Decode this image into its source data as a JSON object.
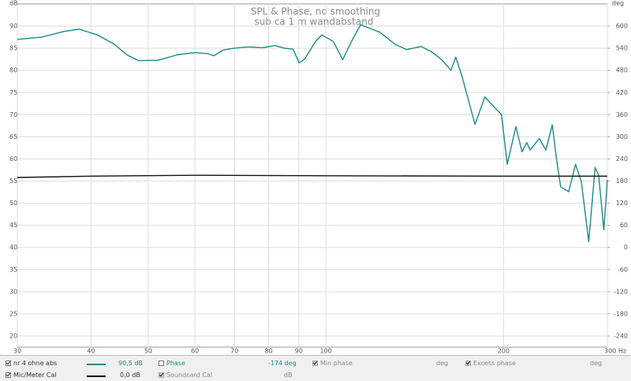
{
  "chart_data": {
    "type": "line",
    "title": "SPL & Phase, no smoothing",
    "subtitle": "sub ca 1 m wandabstand",
    "y_label": "dB",
    "y2_label": "deg",
    "log_x": true,
    "grid": true,
    "xlim": [
      30,
      300
    ],
    "xticks": [
      30,
      40,
      50,
      60,
      70,
      80,
      90,
      100,
      200,
      {
        "value": 300,
        "label": "300 Hz"
      }
    ],
    "ylim": [
      17.5,
      95
    ],
    "yticks": [
      20,
      25,
      30,
      35,
      40,
      45,
      50,
      55,
      60,
      65,
      70,
      75,
      80,
      85,
      90
    ],
    "y2lim": [
      -270,
      660
    ],
    "y2ticks": [
      -240,
      -180,
      -120,
      -60,
      0,
      60,
      120,
      180,
      240,
      300,
      360,
      420,
      480,
      540,
      600
    ],
    "series": [
      {
        "name": "nr 4 ohne abs",
        "color": "#1a8a8a",
        "x": [
          30,
          33,
          36,
          38.2,
          41,
          43.8,
          46,
          48.1,
          52,
          56,
          60,
          63,
          64.6,
          67,
          70,
          74,
          78,
          82,
          85,
          88,
          90.1,
          92,
          96,
          98.5,
          103,
          106.8,
          110,
          114.5,
          123.5,
          131,
          137,
          145,
          151,
          157,
          163,
          166,
          170,
          179,
          186,
          193,
          198.5,
          203,
          210,
          215,
          219,
          222,
          230,
          236,
          242,
          246,
          250,
          258,
          265,
          271,
          279,
          286,
          290,
          296,
          300
        ],
        "values": [
          87.0,
          87.5,
          88.8,
          89.3,
          88.0,
          85.9,
          83.5,
          82.2,
          82.3,
          83.5,
          84.0,
          83.8,
          83.3,
          84.6,
          85.0,
          85.3,
          85.1,
          85.6,
          85.0,
          84.8,
          81.7,
          82.5,
          86.5,
          88.0,
          86.5,
          82.4,
          86.0,
          90.3,
          88.6,
          85.9,
          84.7,
          85.4,
          84.2,
          82.5,
          80.0,
          83.0,
          78.8,
          67.8,
          74.0,
          71.7,
          70.0,
          58.8,
          67.3,
          61.6,
          63.7,
          62.0,
          64.6,
          62.0,
          67.7,
          60.0,
          53.7,
          52.6,
          58.8,
          54.9,
          41.3,
          58.1,
          56.3,
          44.0,
          55.3
        ]
      },
      {
        "name": "Mic/Meter Cal",
        "color": "#111111",
        "x": [
          30,
          40,
          60,
          100,
          200,
          300
        ],
        "values": [
          55.8,
          56.1,
          56.3,
          56.2,
          56.1,
          56.1
        ]
      }
    ],
    "legend": {
      "rows": [
        {
          "name": "nr 4 ohne abs",
          "reading": "90,5 dB",
          "phase": "Phase",
          "phase_reading": "-174 deg",
          "min_phase": "Min phase",
          "min_unit": "deg",
          "excess": "Excess phase",
          "excess_unit": "deg"
        },
        {
          "name": "Mic/Meter Cal",
          "reading": "0,0 dB",
          "soundcard": "Soundcard Cal",
          "soundcard_unit": "dB"
        }
      ]
    }
  }
}
